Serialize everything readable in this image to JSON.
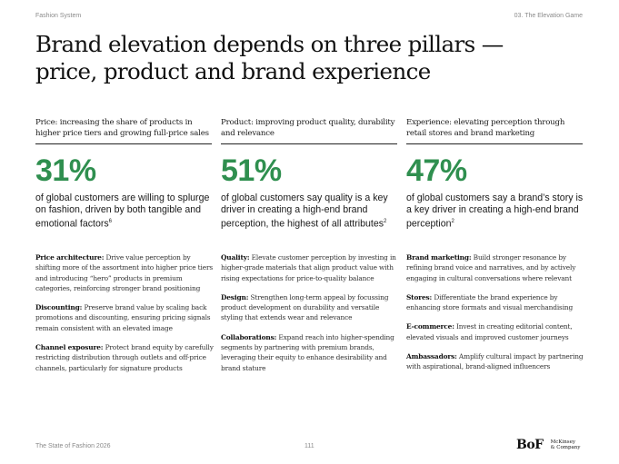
{
  "header": {
    "left": "Fashion System",
    "right": "03. The Elevation Game"
  },
  "title": {
    "line1": "Brand elevation depends on three pillars —",
    "line2": "price, product and brand experience"
  },
  "columns": [
    {
      "heading": "Price: increasing the share of products in higher price tiers and growing full-price sales",
      "stat": "31%",
      "stat_text": "of global customers are willing to splurge on fashion, driven by both tangible and emotional factors",
      "stat_sup": "6",
      "points": [
        {
          "label": "Price architecture:",
          "text": " Drive value perception by shifting more of the assortment into higher price tiers and introducing “hero” products in premium categories, reinforcing stronger brand positioning"
        },
        {
          "label": "Discounting:",
          "text": " Preserve brand value by scaling back promotions and discounting, ensuring pricing signals remain consistent with an elevated image"
        },
        {
          "label": "Channel exposure:",
          "text": " Protect brand equity by carefully restricting distribution through outlets and off-price channels, particularly for signature products"
        }
      ]
    },
    {
      "heading": "Product: improving product quality, durability and relevance",
      "stat": "51%",
      "stat_text": "of global customers say quality is a key driver in creating a high-end brand perception, the highest of all attributes",
      "stat_sup": "2",
      "points": [
        {
          "label": "Quality:",
          "text": " Elevate customer perception by investing in higher-grade materials that align product value with rising expectations for price-to-quality balance"
        },
        {
          "label": "Design:",
          "text": " Strengthen long-term appeal by focussing product development on durability and versatile styling that extends wear and relevance"
        },
        {
          "label": "Collaborations:",
          "text": " Expand reach into higher-spending segments by partnering with premium brands, leveraging their equity to enhance desirability and brand stature"
        }
      ]
    },
    {
      "heading": "Experience: elevating perception through retail stores and brand marketing",
      "stat": "47%",
      "stat_text": "of global customers say a brand’s story is a key driver in creating a high-end brand perception",
      "stat_sup": "2",
      "points": [
        {
          "label": "Brand marketing:",
          "text": " Build stronger resonance by refining brand voice and narratives, and by actively engaging in cultural conversations where relevant"
        },
        {
          "label": "Stores:",
          "text": " Differentiate the brand experience by enhancing store formats and visual merchandising"
        },
        {
          "label": "E-commerce:",
          "text": " Invest in creating editorial content, elevated visuals and improved customer journeys"
        },
        {
          "label": "Ambassadors:",
          "text": " Amplify cultural impact by partnering with aspirational, brand-aligned influencers"
        }
      ]
    }
  ],
  "footer": {
    "left": "The State of Fashion 2026",
    "page": "111",
    "logo_bof": "BoF",
    "logo_mck_line1": "McKinsey",
    "logo_mck_line2": "& Company"
  }
}
